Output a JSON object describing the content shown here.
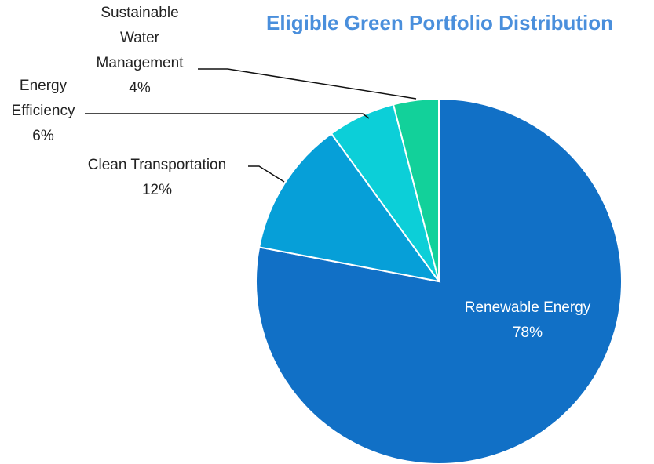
{
  "chart_data": {
    "type": "pie",
    "title": "Eligible Green Portfolio Distribution",
    "categories": [
      "Renewable Energy",
      "Clean Transportation",
      "Energy Efficiency",
      "Sustainable Water Management"
    ],
    "values": [
      78,
      12,
      6,
      4
    ],
    "value_labels": [
      "78%",
      "12%",
      "6%",
      "4%"
    ],
    "colors": [
      "#1170c6",
      "#069fd8",
      "#0ccfd8",
      "#12d19a"
    ]
  }
}
